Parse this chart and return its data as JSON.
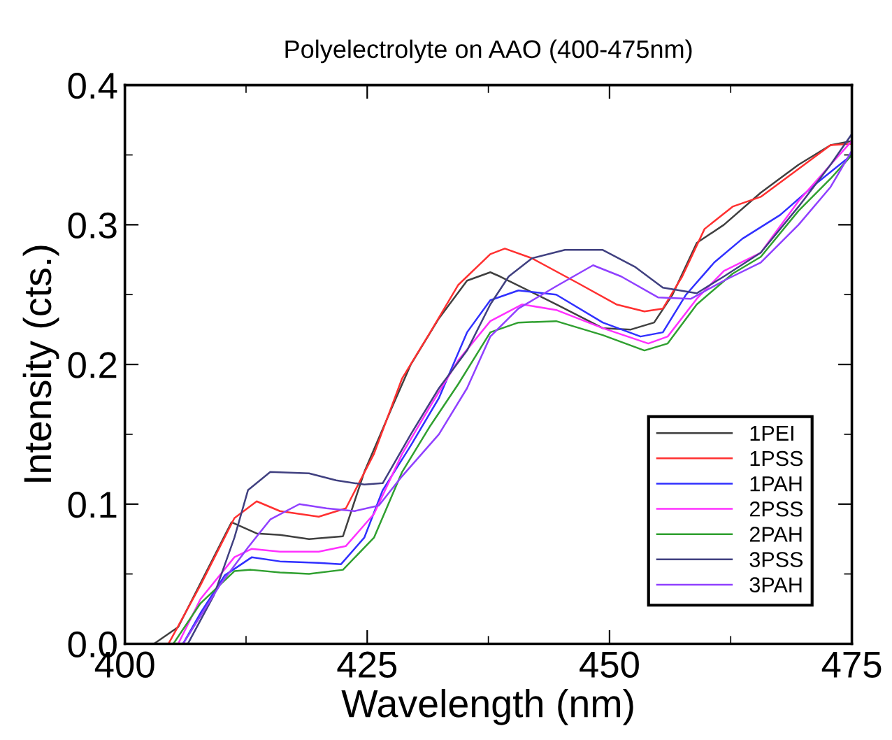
{
  "chart_data": {
    "type": "line",
    "title": "Polyelectrolyte on AAO (400-475nm)",
    "xlabel": "Wavelength (nm)",
    "ylabel": "Intensity (cts.)",
    "xlim": [
      400,
      475
    ],
    "ylim": [
      0,
      0.4
    ],
    "xticks": [
      400,
      425,
      450,
      475
    ],
    "yticks": [
      {
        "value": 0,
        "label": "0.0"
      },
      0.1,
      0.2,
      0.3,
      0.4
    ],
    "grid": false,
    "legend": "right",
    "marker": "none",
    "line_style": "solid",
    "series": [
      {
        "name": "1PEI",
        "color": "#404040",
        "x": [
          403,
          405.5,
          411,
          413.6,
          416,
          419,
          422.5,
          424.7,
          427.6,
          429.5,
          432.4,
          435.3,
          437.7,
          438.7,
          444.5,
          449.3,
          452.2,
          454.6,
          456.5,
          459,
          461.8,
          465.6,
          469.5,
          472.8,
          475
        ],
        "values": [
          0,
          0.012,
          0.087,
          0.079,
          0.078,
          0.075,
          0.077,
          0.123,
          0.17,
          0.2,
          0.233,
          0.26,
          0.266,
          0.263,
          0.243,
          0.226,
          0.225,
          0.23,
          0.25,
          0.287,
          0.3,
          0.323,
          0.343,
          0.357,
          0.36
        ]
      },
      {
        "name": "1PSS",
        "color": "#ff3030",
        "x": [
          404.5,
          407.8,
          411.3,
          413.6,
          416,
          420,
          422.8,
          425.7,
          428.6,
          431.5,
          434.4,
          437.7,
          439.2,
          442,
          446.8,
          450.7,
          453.6,
          455.5,
          457.5,
          459.8,
          462.7,
          465.6,
          469.5,
          472.8,
          475
        ],
        "values": [
          0,
          0.042,
          0.09,
          0.102,
          0.095,
          0.091,
          0.097,
          0.136,
          0.19,
          0.223,
          0.257,
          0.279,
          0.283,
          0.276,
          0.258,
          0.243,
          0.238,
          0.24,
          0.263,
          0.297,
          0.313,
          0.32,
          0.34,
          0.357,
          0.358
        ]
      },
      {
        "name": "1PAH",
        "color": "#3030ff",
        "x": [
          406,
          407.8,
          410.3,
          413.1,
          416,
          420,
          422.3,
          424.7,
          426.6,
          429.5,
          432.4,
          435.3,
          437.7,
          440.6,
          444.5,
          449.3,
          453.2,
          455.5,
          457.9,
          460.8,
          463.7,
          467.6,
          471.4,
          475
        ],
        "values": [
          0,
          0.022,
          0.049,
          0.062,
          0.059,
          0.058,
          0.057,
          0.076,
          0.11,
          0.142,
          0.176,
          0.223,
          0.246,
          0.253,
          0.25,
          0.23,
          0.22,
          0.223,
          0.25,
          0.273,
          0.29,
          0.307,
          0.33,
          0.35
        ]
      },
      {
        "name": "2PSS",
        "color": "#ff30ff",
        "x": [
          405.5,
          407.8,
          411.3,
          413.1,
          416,
          420,
          422.8,
          425.7,
          428.6,
          431.5,
          434.4,
          437.7,
          441,
          444.5,
          449.3,
          454,
          456,
          459,
          461.8,
          465.6,
          469.5,
          472.8,
          475
        ],
        "values": [
          0,
          0.032,
          0.062,
          0.068,
          0.066,
          0.066,
          0.07,
          0.093,
          0.136,
          0.17,
          0.203,
          0.231,
          0.243,
          0.239,
          0.226,
          0.215,
          0.22,
          0.247,
          0.267,
          0.28,
          0.317,
          0.343,
          0.36
        ]
      },
      {
        "name": "2PAH",
        "color": "#30a030",
        "x": [
          405,
          407.8,
          411.3,
          413,
          416,
          419,
          422.5,
          425.7,
          428.6,
          431.5,
          434.4,
          437.7,
          440.6,
          444.5,
          449.3,
          453.6,
          456,
          459,
          462.7,
          465.6,
          469.5,
          472.8,
          475
        ],
        "values": [
          0,
          0.029,
          0.052,
          0.053,
          0.051,
          0.05,
          0.053,
          0.076,
          0.123,
          0.156,
          0.186,
          0.223,
          0.23,
          0.231,
          0.221,
          0.21,
          0.215,
          0.243,
          0.265,
          0.277,
          0.31,
          0.333,
          0.35
        ]
      },
      {
        "name": "3PSS",
        "color": "#404080",
        "x": [
          406.5,
          409.2,
          411.3,
          412.7,
          415,
          419,
          421.8,
          424.7,
          426.6,
          429.5,
          432.4,
          435.3,
          437.7,
          439.6,
          442,
          445.4,
          449.3,
          452.6,
          455.5,
          459,
          461.8,
          465.6,
          469.5,
          472.8,
          475
        ],
        "values": [
          0,
          0.035,
          0.076,
          0.11,
          0.123,
          0.122,
          0.117,
          0.114,
          0.115,
          0.15,
          0.183,
          0.21,
          0.243,
          0.263,
          0.276,
          0.282,
          0.282,
          0.27,
          0.255,
          0.251,
          0.263,
          0.28,
          0.313,
          0.343,
          0.365
        ]
      },
      {
        "name": "3PAH",
        "color": "#9040ff",
        "x": [
          406,
          409.8,
          412.7,
          415,
          418,
          420.8,
          423.7,
          426.2,
          428.6,
          432.4,
          435.3,
          437.7,
          440.6,
          444.5,
          448.3,
          451.2,
          455,
          458.4,
          461.8,
          465.6,
          469.5,
          472.8,
          475
        ],
        "values": [
          0,
          0.042,
          0.069,
          0.089,
          0.1,
          0.097,
          0.095,
          0.099,
          0.12,
          0.15,
          0.183,
          0.22,
          0.24,
          0.256,
          0.271,
          0.263,
          0.248,
          0.247,
          0.26,
          0.273,
          0.3,
          0.327,
          0.353
        ]
      }
    ]
  }
}
